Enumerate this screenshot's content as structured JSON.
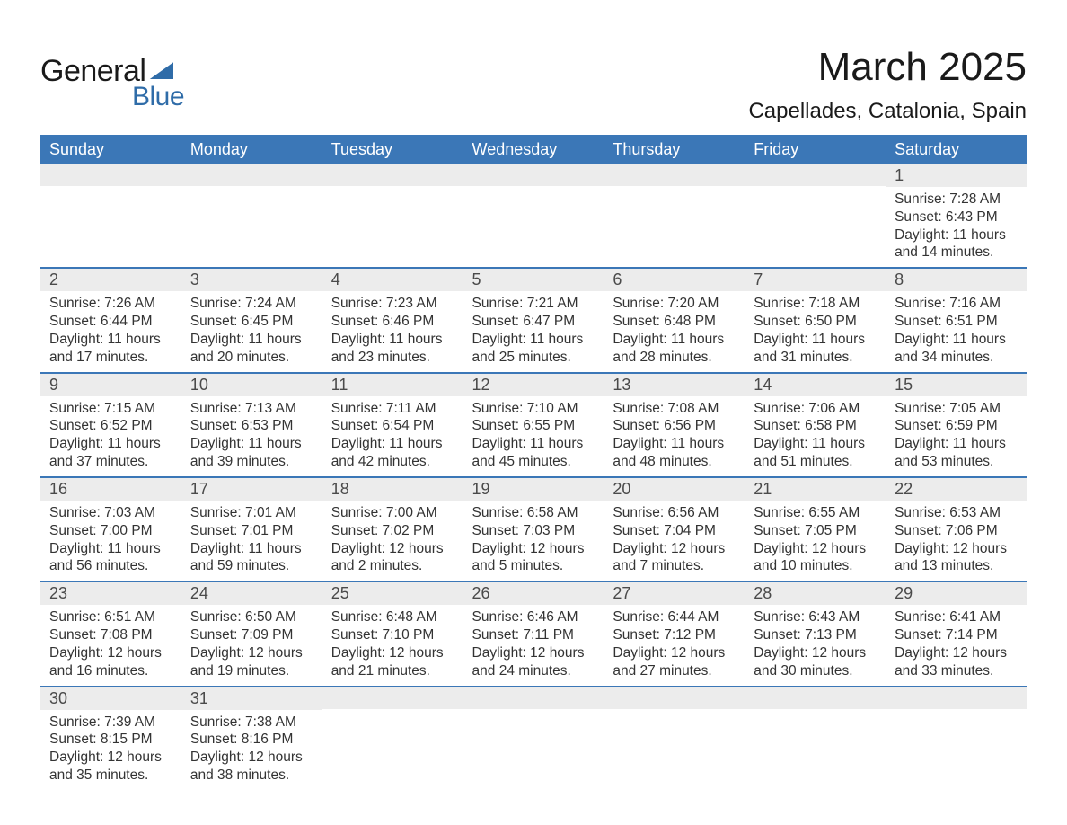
{
  "logo": {
    "text_general": "General",
    "text_blue": "Blue",
    "color_blue": "#2f6ca8",
    "color_dark": "#1a1a1a"
  },
  "title": {
    "month": "March 2025",
    "location": "Capellades, Catalonia, Spain"
  },
  "calendar": {
    "header_bg": "#3b77b7",
    "header_fg": "#ffffff",
    "daynum_bg": "#ececec",
    "border_color": "#3b77b7",
    "weekdays": [
      "Sunday",
      "Monday",
      "Tuesday",
      "Wednesday",
      "Thursday",
      "Friday",
      "Saturday"
    ],
    "weeks": [
      [
        null,
        null,
        null,
        null,
        null,
        null,
        {
          "n": "1",
          "sunrise": "Sunrise: 7:28 AM",
          "sunset": "Sunset: 6:43 PM",
          "day1": "Daylight: 11 hours",
          "day2": "and 14 minutes."
        }
      ],
      [
        {
          "n": "2",
          "sunrise": "Sunrise: 7:26 AM",
          "sunset": "Sunset: 6:44 PM",
          "day1": "Daylight: 11 hours",
          "day2": "and 17 minutes."
        },
        {
          "n": "3",
          "sunrise": "Sunrise: 7:24 AM",
          "sunset": "Sunset: 6:45 PM",
          "day1": "Daylight: 11 hours",
          "day2": "and 20 minutes."
        },
        {
          "n": "4",
          "sunrise": "Sunrise: 7:23 AM",
          "sunset": "Sunset: 6:46 PM",
          "day1": "Daylight: 11 hours",
          "day2": "and 23 minutes."
        },
        {
          "n": "5",
          "sunrise": "Sunrise: 7:21 AM",
          "sunset": "Sunset: 6:47 PM",
          "day1": "Daylight: 11 hours",
          "day2": "and 25 minutes."
        },
        {
          "n": "6",
          "sunrise": "Sunrise: 7:20 AM",
          "sunset": "Sunset: 6:48 PM",
          "day1": "Daylight: 11 hours",
          "day2": "and 28 minutes."
        },
        {
          "n": "7",
          "sunrise": "Sunrise: 7:18 AM",
          "sunset": "Sunset: 6:50 PM",
          "day1": "Daylight: 11 hours",
          "day2": "and 31 minutes."
        },
        {
          "n": "8",
          "sunrise": "Sunrise: 7:16 AM",
          "sunset": "Sunset: 6:51 PM",
          "day1": "Daylight: 11 hours",
          "day2": "and 34 minutes."
        }
      ],
      [
        {
          "n": "9",
          "sunrise": "Sunrise: 7:15 AM",
          "sunset": "Sunset: 6:52 PM",
          "day1": "Daylight: 11 hours",
          "day2": "and 37 minutes."
        },
        {
          "n": "10",
          "sunrise": "Sunrise: 7:13 AM",
          "sunset": "Sunset: 6:53 PM",
          "day1": "Daylight: 11 hours",
          "day2": "and 39 minutes."
        },
        {
          "n": "11",
          "sunrise": "Sunrise: 7:11 AM",
          "sunset": "Sunset: 6:54 PM",
          "day1": "Daylight: 11 hours",
          "day2": "and 42 minutes."
        },
        {
          "n": "12",
          "sunrise": "Sunrise: 7:10 AM",
          "sunset": "Sunset: 6:55 PM",
          "day1": "Daylight: 11 hours",
          "day2": "and 45 minutes."
        },
        {
          "n": "13",
          "sunrise": "Sunrise: 7:08 AM",
          "sunset": "Sunset: 6:56 PM",
          "day1": "Daylight: 11 hours",
          "day2": "and 48 minutes."
        },
        {
          "n": "14",
          "sunrise": "Sunrise: 7:06 AM",
          "sunset": "Sunset: 6:58 PM",
          "day1": "Daylight: 11 hours",
          "day2": "and 51 minutes."
        },
        {
          "n": "15",
          "sunrise": "Sunrise: 7:05 AM",
          "sunset": "Sunset: 6:59 PM",
          "day1": "Daylight: 11 hours",
          "day2": "and 53 minutes."
        }
      ],
      [
        {
          "n": "16",
          "sunrise": "Sunrise: 7:03 AM",
          "sunset": "Sunset: 7:00 PM",
          "day1": "Daylight: 11 hours",
          "day2": "and 56 minutes."
        },
        {
          "n": "17",
          "sunrise": "Sunrise: 7:01 AM",
          "sunset": "Sunset: 7:01 PM",
          "day1": "Daylight: 11 hours",
          "day2": "and 59 minutes."
        },
        {
          "n": "18",
          "sunrise": "Sunrise: 7:00 AM",
          "sunset": "Sunset: 7:02 PM",
          "day1": "Daylight: 12 hours",
          "day2": "and 2 minutes."
        },
        {
          "n": "19",
          "sunrise": "Sunrise: 6:58 AM",
          "sunset": "Sunset: 7:03 PM",
          "day1": "Daylight: 12 hours",
          "day2": "and 5 minutes."
        },
        {
          "n": "20",
          "sunrise": "Sunrise: 6:56 AM",
          "sunset": "Sunset: 7:04 PM",
          "day1": "Daylight: 12 hours",
          "day2": "and 7 minutes."
        },
        {
          "n": "21",
          "sunrise": "Sunrise: 6:55 AM",
          "sunset": "Sunset: 7:05 PM",
          "day1": "Daylight: 12 hours",
          "day2": "and 10 minutes."
        },
        {
          "n": "22",
          "sunrise": "Sunrise: 6:53 AM",
          "sunset": "Sunset: 7:06 PM",
          "day1": "Daylight: 12 hours",
          "day2": "and 13 minutes."
        }
      ],
      [
        {
          "n": "23",
          "sunrise": "Sunrise: 6:51 AM",
          "sunset": "Sunset: 7:08 PM",
          "day1": "Daylight: 12 hours",
          "day2": "and 16 minutes."
        },
        {
          "n": "24",
          "sunrise": "Sunrise: 6:50 AM",
          "sunset": "Sunset: 7:09 PM",
          "day1": "Daylight: 12 hours",
          "day2": "and 19 minutes."
        },
        {
          "n": "25",
          "sunrise": "Sunrise: 6:48 AM",
          "sunset": "Sunset: 7:10 PM",
          "day1": "Daylight: 12 hours",
          "day2": "and 21 minutes."
        },
        {
          "n": "26",
          "sunrise": "Sunrise: 6:46 AM",
          "sunset": "Sunset: 7:11 PM",
          "day1": "Daylight: 12 hours",
          "day2": "and 24 minutes."
        },
        {
          "n": "27",
          "sunrise": "Sunrise: 6:44 AM",
          "sunset": "Sunset: 7:12 PM",
          "day1": "Daylight: 12 hours",
          "day2": "and 27 minutes."
        },
        {
          "n": "28",
          "sunrise": "Sunrise: 6:43 AM",
          "sunset": "Sunset: 7:13 PM",
          "day1": "Daylight: 12 hours",
          "day2": "and 30 minutes."
        },
        {
          "n": "29",
          "sunrise": "Sunrise: 6:41 AM",
          "sunset": "Sunset: 7:14 PM",
          "day1": "Daylight: 12 hours",
          "day2": "and 33 minutes."
        }
      ],
      [
        {
          "n": "30",
          "sunrise": "Sunrise: 7:39 AM",
          "sunset": "Sunset: 8:15 PM",
          "day1": "Daylight: 12 hours",
          "day2": "and 35 minutes."
        },
        {
          "n": "31",
          "sunrise": "Sunrise: 7:38 AM",
          "sunset": "Sunset: 8:16 PM",
          "day1": "Daylight: 12 hours",
          "day2": "and 38 minutes."
        },
        null,
        null,
        null,
        null,
        null
      ]
    ]
  }
}
